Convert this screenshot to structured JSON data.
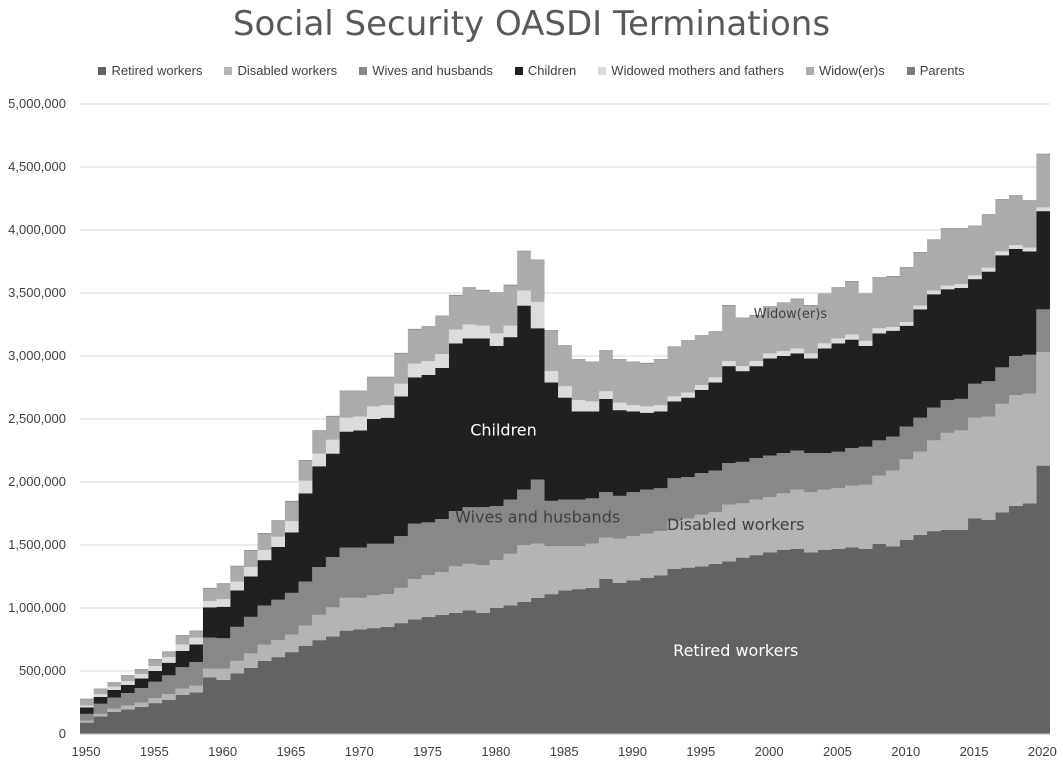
{
  "chart_data": {
    "type": "area",
    "title": "Social Security OASDI Terminations",
    "xlabel": "",
    "ylabel": "",
    "xlim": [
      1950,
      2020
    ],
    "ylim": [
      0,
      5000000
    ],
    "x_ticks": [
      "1950",
      "1955",
      "1960",
      "1965",
      "1970",
      "1975",
      "1980",
      "1985",
      "1990",
      "1995",
      "2000",
      "2005",
      "2010",
      "2015",
      "2020"
    ],
    "y_ticks": [
      "0",
      "500,000",
      "1,000,000",
      "1,500,000",
      "2,000,000",
      "2,500,000",
      "3,000,000",
      "3,500,000",
      "4,000,000",
      "4,500,000",
      "5,000,000"
    ],
    "grid": "horizontal",
    "legend_position": "top",
    "stacked": true,
    "step": true,
    "colors": [
      "#636363",
      "#b4b4b4",
      "#888888",
      "#202020",
      "#dcdcdc",
      "#ababab",
      "#7d7d7d"
    ],
    "x": [
      1950,
      1951,
      1952,
      1953,
      1954,
      1955,
      1956,
      1957,
      1958,
      1959,
      1960,
      1961,
      1962,
      1963,
      1964,
      1965,
      1966,
      1967,
      1968,
      1969,
      1970,
      1971,
      1972,
      1973,
      1974,
      1975,
      1976,
      1977,
      1978,
      1979,
      1980,
      1981,
      1982,
      1983,
      1984,
      1985,
      1986,
      1987,
      1988,
      1989,
      1990,
      1991,
      1992,
      1993,
      1994,
      1995,
      1996,
      1997,
      1998,
      1999,
      2000,
      2001,
      2002,
      2003,
      2004,
      2005,
      2006,
      2007,
      2008,
      2009,
      2010,
      2011,
      2012,
      2013,
      2014,
      2015,
      2016,
      2017,
      2018,
      2019,
      2020
    ],
    "series": [
      {
        "name": "Retired workers",
        "values": [
          90000,
          140000,
          175000,
          195000,
          215000,
          245000,
          270000,
          310000,
          330000,
          450000,
          430000,
          480000,
          525000,
          580000,
          610000,
          650000,
          700000,
          745000,
          775000,
          820000,
          830000,
          840000,
          850000,
          880000,
          910000,
          930000,
          945000,
          960000,
          980000,
          960000,
          1000000,
          1020000,
          1050000,
          1080000,
          1110000,
          1140000,
          1150000,
          1160000,
          1230000,
          1200000,
          1220000,
          1240000,
          1260000,
          1310000,
          1320000,
          1330000,
          1350000,
          1370000,
          1400000,
          1420000,
          1440000,
          1460000,
          1470000,
          1440000,
          1460000,
          1470000,
          1480000,
          1470000,
          1510000,
          1490000,
          1540000,
          1580000,
          1610000,
          1620000,
          1620000,
          1710000,
          1700000,
          1760000,
          1810000,
          1830000,
          2130000
        ]
      },
      {
        "name": "Disabled workers",
        "values": [
          15000,
          20000,
          25000,
          30000,
          35000,
          40000,
          45000,
          50000,
          55000,
          70000,
          90000,
          100000,
          115000,
          130000,
          135000,
          140000,
          160000,
          200000,
          230000,
          260000,
          250000,
          260000,
          260000,
          280000,
          320000,
          330000,
          340000,
          370000,
          370000,
          380000,
          380000,
          410000,
          450000,
          430000,
          380000,
          350000,
          340000,
          350000,
          330000,
          350000,
          350000,
          350000,
          350000,
          380000,
          390000,
          410000,
          410000,
          450000,
          430000,
          440000,
          440000,
          450000,
          470000,
          480000,
          480000,
          480000,
          490000,
          510000,
          540000,
          600000,
          640000,
          660000,
          720000,
          770000,
          790000,
          800000,
          820000,
          860000,
          880000,
          870000,
          900000
        ]
      },
      {
        "name": "Wives and husbands",
        "values": [
          55000,
          80000,
          90000,
          100000,
          115000,
          130000,
          150000,
          170000,
          185000,
          245000,
          240000,
          270000,
          290000,
          310000,
          320000,
          330000,
          350000,
          380000,
          400000,
          400000,
          400000,
          410000,
          400000,
          410000,
          440000,
          420000,
          420000,
          440000,
          450000,
          460000,
          430000,
          430000,
          440000,
          510000,
          360000,
          370000,
          370000,
          360000,
          360000,
          340000,
          350000,
          350000,
          340000,
          340000,
          330000,
          330000,
          330000,
          330000,
          330000,
          330000,
          330000,
          320000,
          310000,
          310000,
          290000,
          290000,
          300000,
          300000,
          280000,
          270000,
          260000,
          270000,
          260000,
          260000,
          250000,
          270000,
          280000,
          290000,
          310000,
          310000,
          340000
        ]
      },
      {
        "name": "Children",
        "values": [
          50000,
          55000,
          60000,
          65000,
          75000,
          85000,
          100000,
          130000,
          140000,
          240000,
          250000,
          290000,
          320000,
          360000,
          420000,
          480000,
          700000,
          800000,
          820000,
          920000,
          930000,
          990000,
          1000000,
          1110000,
          1160000,
          1170000,
          1200000,
          1330000,
          1340000,
          1340000,
          1270000,
          1290000,
          1460000,
          1200000,
          940000,
          810000,
          700000,
          690000,
          740000,
          680000,
          640000,
          610000,
          610000,
          610000,
          630000,
          660000,
          700000,
          770000,
          720000,
          730000,
          770000,
          770000,
          770000,
          750000,
          830000,
          860000,
          860000,
          800000,
          850000,
          840000,
          800000,
          860000,
          900000,
          880000,
          880000,
          830000,
          870000,
          890000,
          850000,
          820000,
          780000
        ]
      },
      {
        "name": "Widowed mothers and fathers",
        "values": [
          15000,
          20000,
          25000,
          30000,
          35000,
          40000,
          45000,
          50000,
          55000,
          50000,
          60000,
          70000,
          75000,
          80000,
          80000,
          90000,
          100000,
          100000,
          110000,
          110000,
          110000,
          100000,
          100000,
          100000,
          110000,
          110000,
          110000,
          110000,
          110000,
          100000,
          100000,
          90000,
          120000,
          210000,
          90000,
          90000,
          90000,
          80000,
          60000,
          60000,
          50000,
          50000,
          50000,
          40000,
          40000,
          40000,
          40000,
          40000,
          40000,
          40000,
          40000,
          40000,
          40000,
          40000,
          40000,
          40000,
          40000,
          40000,
          40000,
          30000,
          30000,
          30000,
          30000,
          30000,
          30000,
          30000,
          30000,
          30000,
          30000,
          30000,
          30000
        ]
      },
      {
        "name": "Widow(er)s",
        "values": [
          50000,
          40000,
          30000,
          40000,
          35000,
          50000,
          40000,
          70000,
          50000,
          100000,
          120000,
          120000,
          130000,
          130000,
          125000,
          155000,
          160000,
          180000,
          185000,
          210000,
          200000,
          230000,
          220000,
          240000,
          270000,
          270000,
          300000,
          270000,
          290000,
          280000,
          320000,
          320000,
          310000,
          330000,
          320000,
          320000,
          320000,
          310000,
          320000,
          340000,
          340000,
          340000,
          360000,
          390000,
          410000,
          390000,
          360000,
          440000,
          380000,
          360000,
          370000,
          380000,
          390000,
          380000,
          390000,
          400000,
          420000,
          370000,
          400000,
          400000,
          430000,
          420000,
          400000,
          450000,
          440000,
          390000,
          420000,
          410000,
          390000,
          370000,
          420000
        ]
      },
      {
        "name": "Parents",
        "values": [
          5000,
          5000,
          5000,
          5000,
          5000,
          5000,
          5000,
          5000,
          5000,
          5000,
          5000,
          5000,
          5000,
          5000,
          5000,
          5000,
          5000,
          5000,
          5000,
          5000,
          5000,
          5000,
          5000,
          5000,
          5000,
          5000,
          5000,
          5000,
          5000,
          5000,
          5000,
          5000,
          5000,
          5000,
          5000,
          5000,
          5000,
          5000,
          5000,
          5000,
          5000,
          5000,
          5000,
          5000,
          5000,
          5000,
          5000,
          5000,
          5000,
          5000,
          5000,
          5000,
          5000,
          5000,
          5000,
          5000,
          5000,
          5000,
          5000,
          5000,
          5000,
          5000,
          5000,
          5000,
          5000,
          5000,
          5000,
          5000,
          5000,
          5000,
          5000
        ]
      }
    ],
    "annotations": [
      {
        "text": "Children",
        "x": 1981,
        "y": 2370000,
        "color": "#ffffff",
        "size": 16
      },
      {
        "text": "Wives and husbands",
        "x": 1983.5,
        "y": 1680000,
        "color": "#404040",
        "size": 16
      },
      {
        "text": "Disabled workers",
        "x": 1998,
        "y": 1620000,
        "color": "#404040",
        "size": 16
      },
      {
        "text": "Retired workers",
        "x": 1998,
        "y": 620000,
        "color": "#ffffff",
        "size": 16
      },
      {
        "text": "Widow(er)s",
        "x": 2002,
        "y": 3300000,
        "color": "#404040",
        "size": 13
      }
    ]
  }
}
